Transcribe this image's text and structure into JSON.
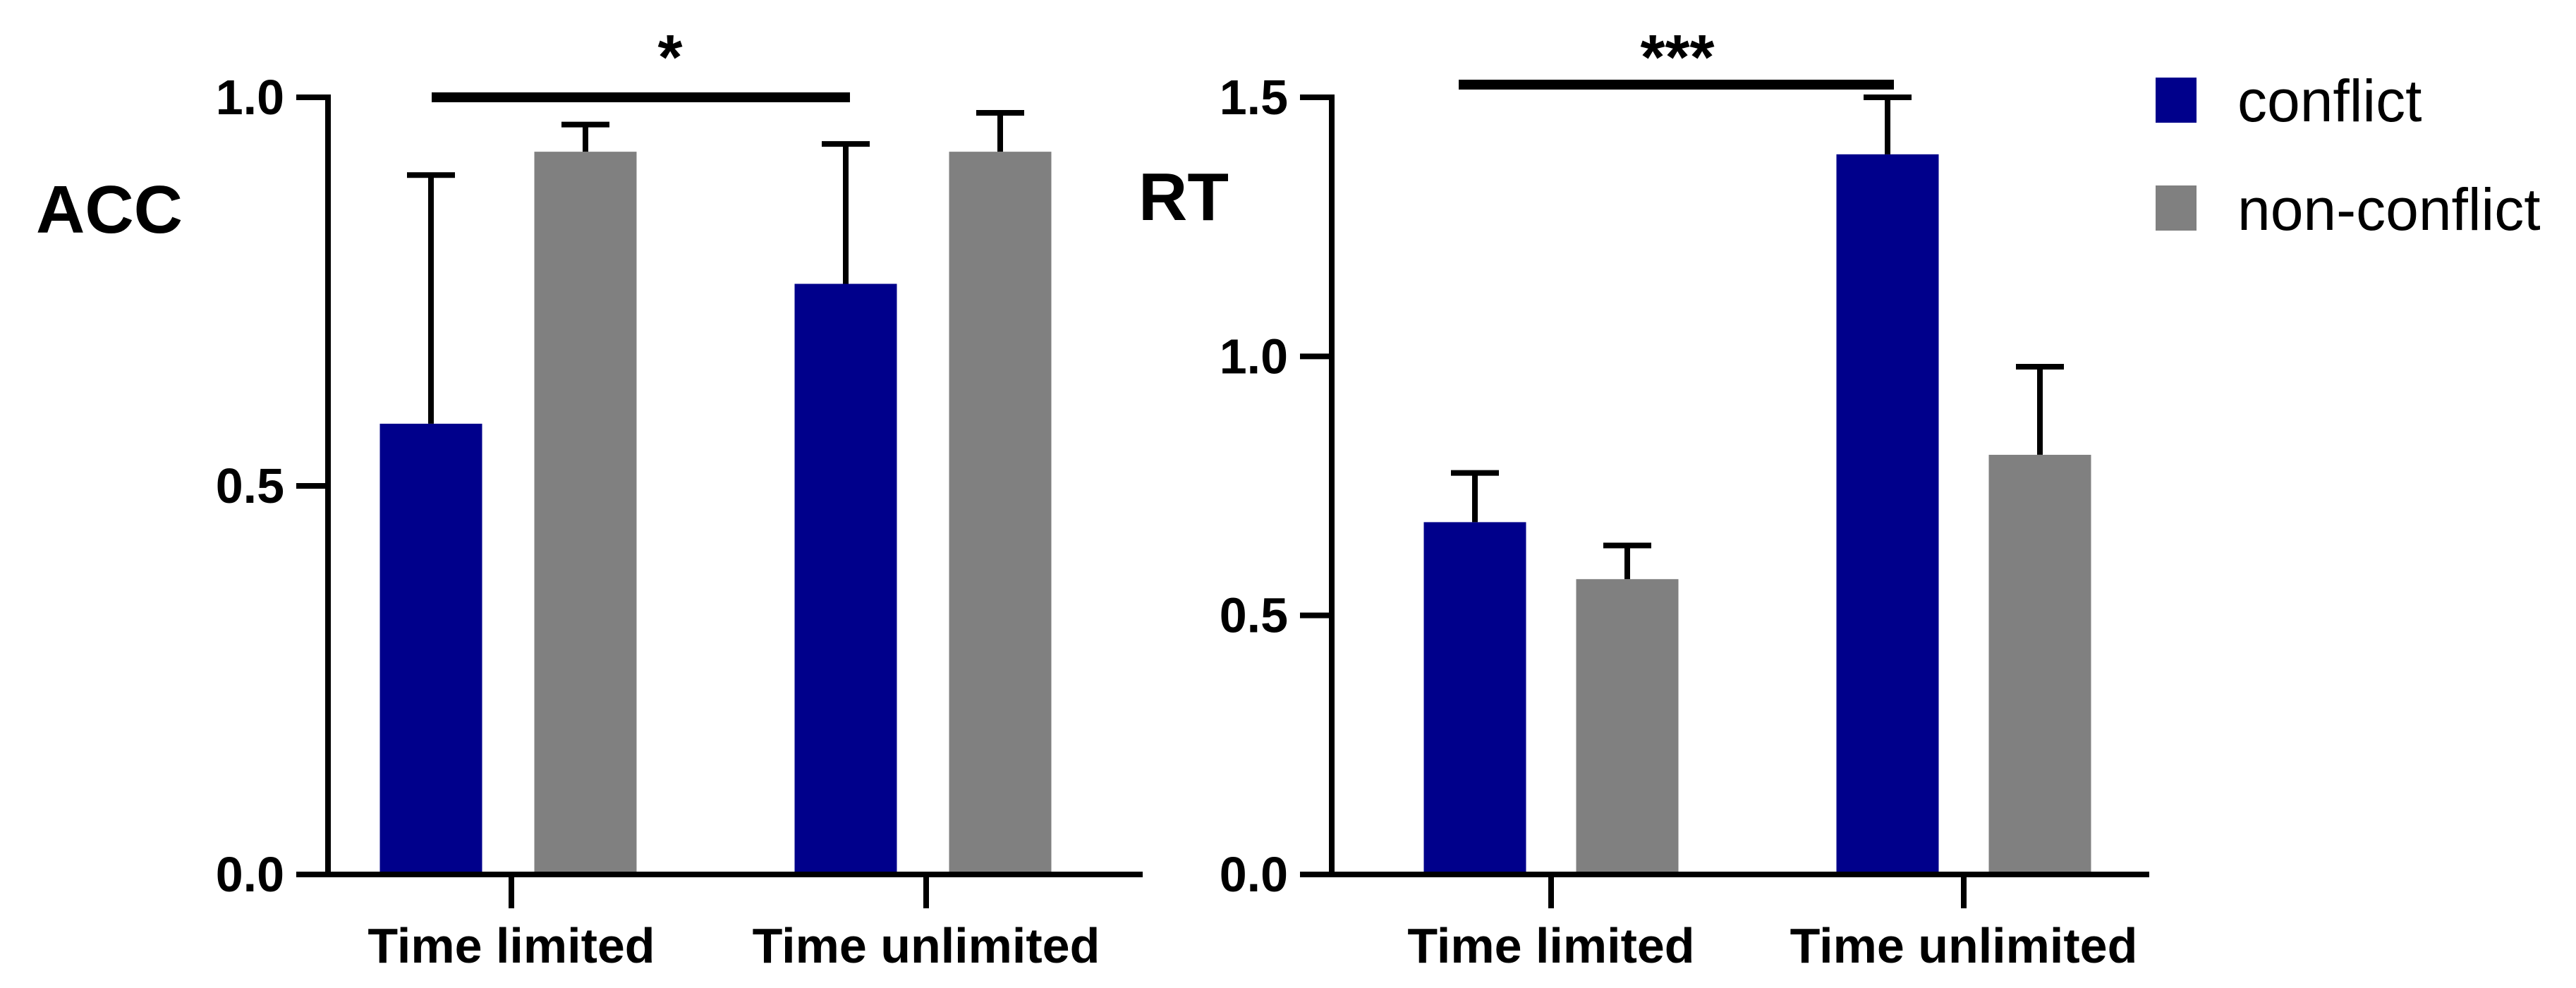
{
  "legend": {
    "items": [
      {
        "name": "conflict",
        "color": "#00008b"
      },
      {
        "name": "non-conflict",
        "color": "#808080"
      }
    ]
  },
  "chart_data": [
    {
      "type": "bar",
      "ylabel": "ACC",
      "categories": [
        "Time limited",
        "Time unlimited"
      ],
      "ylim": [
        0.0,
        1.0
      ],
      "yticks": [
        0.0,
        0.5,
        1.0
      ],
      "ytick_labels": [
        "0.0",
        "0.5",
        "1.0"
      ],
      "series": [
        {
          "name": "conflict",
          "color": "#00008b",
          "values": [
            0.58,
            0.76
          ],
          "error": [
            0.32,
            0.18
          ]
        },
        {
          "name": "non-conflict",
          "color": "#808080",
          "values": [
            0.93,
            0.93
          ],
          "error": [
            0.035,
            0.05
          ]
        }
      ],
      "significance": {
        "label": "*",
        "from_category": 0,
        "to_category": 1,
        "series": "conflict",
        "level": 1.0
      }
    },
    {
      "type": "bar",
      "ylabel": "RT",
      "categories": [
        "Time limited",
        "Time unlimited"
      ],
      "ylim": [
        0.0,
        1.5
      ],
      "yticks": [
        0.0,
        0.5,
        1.0,
        1.5
      ],
      "ytick_labels": [
        "0.0",
        "0.5",
        "1.0",
        "1.5"
      ],
      "series": [
        {
          "name": "conflict",
          "color": "#00008b",
          "values": [
            0.68,
            1.39
          ],
          "error": [
            0.095,
            0.11
          ]
        },
        {
          "name": "non-conflict",
          "color": "#808080",
          "values": [
            0.57,
            0.81
          ],
          "error": [
            0.065,
            0.17
          ]
        }
      ],
      "significance": {
        "label": "***",
        "from_category": 0,
        "to_category": 1,
        "series": "conflict",
        "level": 1.52
      }
    }
  ]
}
